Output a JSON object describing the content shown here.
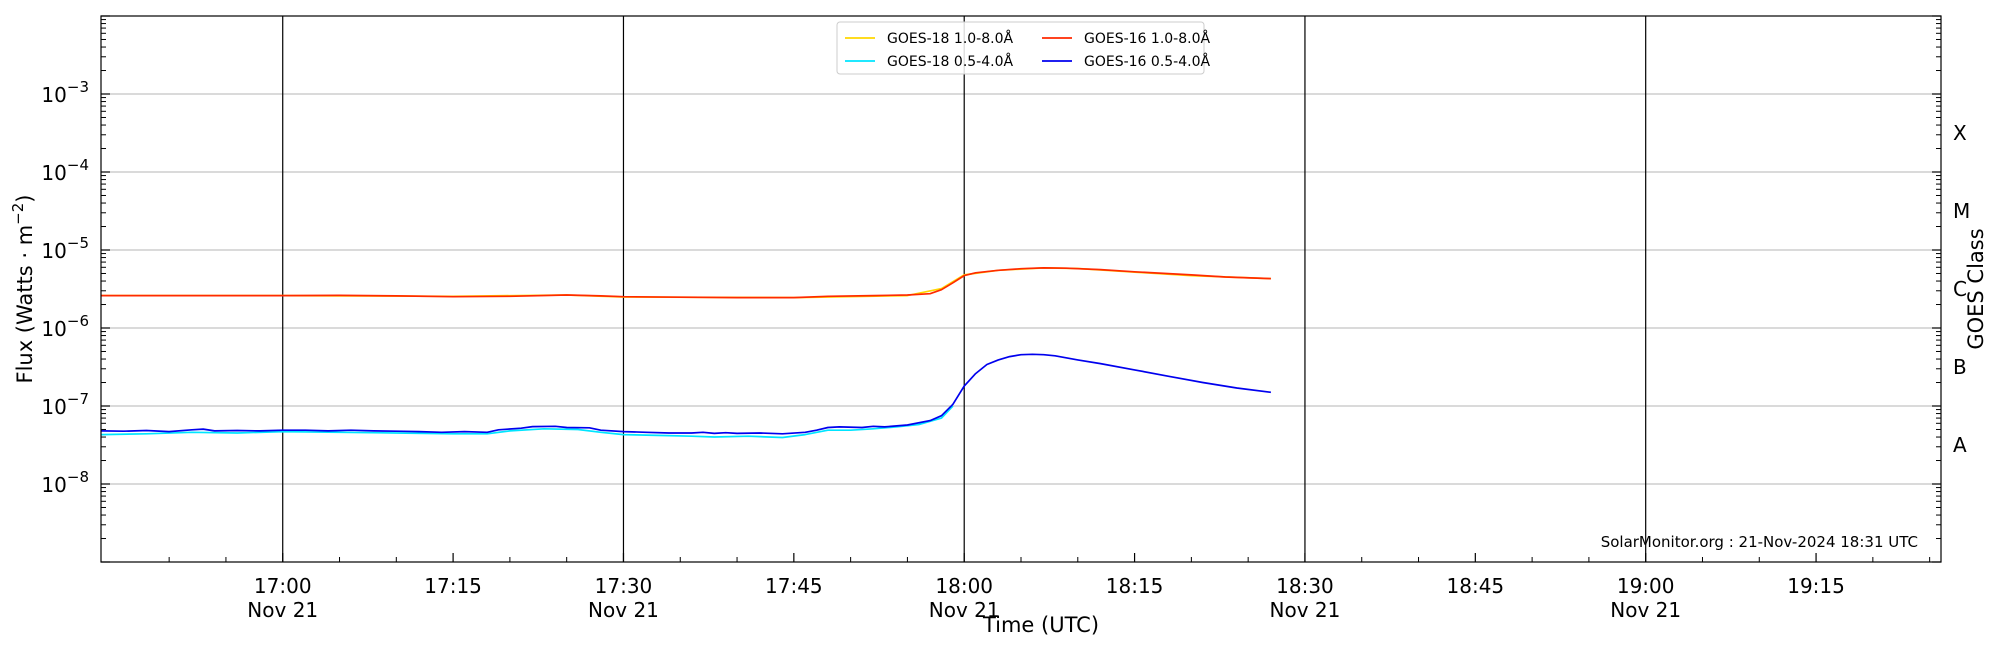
{
  "chart_data": {
    "type": "line",
    "x_axis": {
      "label": "Time (UTC)",
      "range": [
        "16:44",
        "19:26"
      ],
      "ticks": [
        {
          "time": "17:00",
          "label": "17:00",
          "sub": "Nov 21"
        },
        {
          "time": "17:15",
          "label": "17:15",
          "sub": ""
        },
        {
          "time": "17:30",
          "label": "17:30",
          "sub": "Nov 21"
        },
        {
          "time": "17:45",
          "label": "17:45",
          "sub": ""
        },
        {
          "time": "18:00",
          "label": "18:00",
          "sub": "Nov 21"
        },
        {
          "time": "18:15",
          "label": "18:15",
          "sub": ""
        },
        {
          "time": "18:30",
          "label": "18:30",
          "sub": "Nov 21"
        },
        {
          "time": "18:45",
          "label": "18:45",
          "sub": ""
        },
        {
          "time": "19:00",
          "label": "19:00",
          "sub": "Nov 21"
        },
        {
          "time": "19:15",
          "label": "19:15",
          "sub": ""
        }
      ],
      "vertical_lines": [
        "17:00",
        "17:30",
        "18:00",
        "18:30",
        "19:00"
      ]
    },
    "y_axis": {
      "label_prefix": "Flux (Watts · m",
      "label_sup": "−2",
      "label_suffix": ")",
      "scale": "log",
      "range": [
        1e-09,
        0.01
      ],
      "ticks": [
        {
          "exp": -8,
          "base": "10",
          "sup": "−8"
        },
        {
          "exp": -7,
          "base": "10",
          "sup": "−7"
        },
        {
          "exp": -6,
          "base": "10",
          "sup": "−6"
        },
        {
          "exp": -5,
          "base": "10",
          "sup": "−5"
        },
        {
          "exp": -4,
          "base": "10",
          "sup": "−4"
        },
        {
          "exp": -3,
          "base": "10",
          "sup": "−3"
        }
      ],
      "grid": true
    },
    "right_axis": {
      "label": "GOES Class",
      "classes": [
        {
          "label": "A",
          "exp": -7.5
        },
        {
          "label": "B",
          "exp": -6.5
        },
        {
          "label": "C",
          "exp": -5.5
        },
        {
          "label": "M",
          "exp": -4.5
        },
        {
          "label": "X",
          "exp": -3.5
        }
      ]
    },
    "legend": {
      "position": "top-center",
      "entries": [
        {
          "name": "GOES-18 1.0-8.0Å",
          "color": "#ffd700"
        },
        {
          "name": "GOES-18 0.5-4.0Å",
          "color": "#00e5ff"
        },
        {
          "name": "GOES-16 1.0-8.0Å",
          "color": "#ff2a00"
        },
        {
          "name": "GOES-16 0.5-4.0Å",
          "color": "#0000ee"
        }
      ]
    },
    "series": [
      {
        "name": "GOES-18 1.0-8.0Å",
        "color": "#ffd700",
        "points": [
          [
            "16:44",
            2.6e-06
          ],
          [
            "17:00",
            2.6e-06
          ],
          [
            "17:15",
            2.55e-06
          ],
          [
            "17:25",
            2.65e-06
          ],
          [
            "17:30",
            2.5e-06
          ],
          [
            "17:45",
            2.45e-06
          ],
          [
            "17:55",
            2.6e-06
          ],
          [
            "17:58",
            3.2e-06
          ],
          [
            "18:00",
            4.8e-06
          ],
          [
            "18:03",
            5.5e-06
          ],
          [
            "18:07",
            5.9e-06
          ],
          [
            "18:10",
            5.8e-06
          ],
          [
            "18:15",
            5.2e-06
          ],
          [
            "18:20",
            4.7e-06
          ],
          [
            "18:27",
            4.3e-06
          ]
        ]
      },
      {
        "name": "GOES-16 1.0-8.0Å",
        "color": "#ff2a00",
        "points": [
          [
            "16:44",
            2.6e-06
          ],
          [
            "16:50",
            2.6e-06
          ],
          [
            "17:00",
            2.6e-06
          ],
          [
            "17:05",
            2.62e-06
          ],
          [
            "17:10",
            2.58e-06
          ],
          [
            "17:15",
            2.52e-06
          ],
          [
            "17:20",
            2.55e-06
          ],
          [
            "17:25",
            2.65e-06
          ],
          [
            "17:28",
            2.58e-06
          ],
          [
            "17:30",
            2.52e-06
          ],
          [
            "17:35",
            2.48e-06
          ],
          [
            "17:40",
            2.45e-06
          ],
          [
            "17:45",
            2.45e-06
          ],
          [
            "17:48",
            2.55e-06
          ],
          [
            "17:52",
            2.6e-06
          ],
          [
            "17:55",
            2.65e-06
          ],
          [
            "17:57",
            2.75e-06
          ],
          [
            "17:58",
            3.1e-06
          ],
          [
            "17:59",
            3.8e-06
          ],
          [
            "18:00",
            4.7e-06
          ],
          [
            "18:01",
            5.1e-06
          ],
          [
            "18:03",
            5.5e-06
          ],
          [
            "18:05",
            5.75e-06
          ],
          [
            "18:07",
            5.9e-06
          ],
          [
            "18:09",
            5.85e-06
          ],
          [
            "18:12",
            5.6e-06
          ],
          [
            "18:15",
            5.25e-06
          ],
          [
            "18:20",
            4.8e-06
          ],
          [
            "18:23",
            4.5e-06
          ],
          [
            "18:27",
            4.3e-06
          ]
        ]
      },
      {
        "name": "GOES-18 0.5-4.0Å",
        "color": "#00e5ff",
        "points": [
          [
            "16:44",
            4.3e-08
          ],
          [
            "16:48",
            4.4e-08
          ],
          [
            "16:52",
            4.6e-08
          ],
          [
            "16:56",
            4.5e-08
          ],
          [
            "17:00",
            4.7e-08
          ],
          [
            "17:05",
            4.6e-08
          ],
          [
            "17:10",
            4.5e-08
          ],
          [
            "17:15",
            4.4e-08
          ],
          [
            "17:18",
            4.4e-08
          ],
          [
            "17:20",
            4.8e-08
          ],
          [
            "17:23",
            5.1e-08
          ],
          [
            "17:26",
            5e-08
          ],
          [
            "17:28",
            4.6e-08
          ],
          [
            "17:30",
            4.3e-08
          ],
          [
            "17:33",
            4.2e-08
          ],
          [
            "17:36",
            4.1e-08
          ],
          [
            "17:38",
            4e-08
          ],
          [
            "17:41",
            4.1e-08
          ],
          [
            "17:44",
            3.95e-08
          ],
          [
            "17:46",
            4.3e-08
          ],
          [
            "17:48",
            4.9e-08
          ],
          [
            "17:50",
            4.9e-08
          ],
          [
            "17:52",
            5.1e-08
          ],
          [
            "17:54",
            5.4e-08
          ],
          [
            "17:56",
            5.8e-08
          ],
          [
            "17:58",
            7e-08
          ],
          [
            "17:59",
            1e-07
          ]
        ]
      },
      {
        "name": "GOES-16 0.5-4.0Å",
        "color": "#0000ee",
        "points": [
          [
            "16:44",
            4.8e-08
          ],
          [
            "16:46",
            4.75e-08
          ],
          [
            "16:48",
            4.85e-08
          ],
          [
            "16:50",
            4.7e-08
          ],
          [
            "16:52",
            4.95e-08
          ],
          [
            "16:53",
            5.05e-08
          ],
          [
            "16:54",
            4.8e-08
          ],
          [
            "16:56",
            4.85e-08
          ],
          [
            "16:58",
            4.8e-08
          ],
          [
            "17:00",
            4.9e-08
          ],
          [
            "17:02",
            4.9e-08
          ],
          [
            "17:04",
            4.8e-08
          ],
          [
            "17:06",
            4.9e-08
          ],
          [
            "17:08",
            4.8e-08
          ],
          [
            "17:10",
            4.75e-08
          ],
          [
            "17:12",
            4.7e-08
          ],
          [
            "17:14",
            4.6e-08
          ],
          [
            "17:16",
            4.7e-08
          ],
          [
            "17:18",
            4.6e-08
          ],
          [
            "17:19",
            4.95e-08
          ],
          [
            "17:21",
            5.2e-08
          ],
          [
            "17:22",
            5.45e-08
          ],
          [
            "17:24",
            5.5e-08
          ],
          [
            "17:25",
            5.3e-08
          ],
          [
            "17:27",
            5.25e-08
          ],
          [
            "17:28",
            4.9e-08
          ],
          [
            "17:30",
            4.7e-08
          ],
          [
            "17:32",
            4.6e-08
          ],
          [
            "17:34",
            4.5e-08
          ],
          [
            "17:36",
            4.5e-08
          ],
          [
            "17:37",
            4.6e-08
          ],
          [
            "17:38",
            4.45e-08
          ],
          [
            "17:39",
            4.55e-08
          ],
          [
            "17:40",
            4.45e-08
          ],
          [
            "17:42",
            4.5e-08
          ],
          [
            "17:44",
            4.4e-08
          ],
          [
            "17:46",
            4.6e-08
          ],
          [
            "17:47",
            4.9e-08
          ],
          [
            "17:48",
            5.3e-08
          ],
          [
            "17:49",
            5.4e-08
          ],
          [
            "17:51",
            5.3e-08
          ],
          [
            "17:52",
            5.5e-08
          ],
          [
            "17:53",
            5.4e-08
          ],
          [
            "17:55",
            5.7e-08
          ],
          [
            "17:57",
            6.5e-08
          ],
          [
            "17:58",
            7.5e-08
          ],
          [
            "17:59",
            1.05e-07
          ],
          [
            "18:00",
            1.8e-07
          ],
          [
            "18:01",
            2.6e-07
          ],
          [
            "18:02",
            3.4e-07
          ],
          [
            "18:03",
            3.9e-07
          ],
          [
            "18:04",
            4.3e-07
          ],
          [
            "18:05",
            4.55e-07
          ],
          [
            "18:06",
            4.6e-07
          ],
          [
            "18:07",
            4.55e-07
          ],
          [
            "18:08",
            4.4e-07
          ],
          [
            "18:10",
            3.9e-07
          ],
          [
            "18:12",
            3.5e-07
          ],
          [
            "18:15",
            2.9e-07
          ],
          [
            "18:18",
            2.4e-07
          ],
          [
            "18:21",
            2e-07
          ],
          [
            "18:24",
            1.7e-07
          ],
          [
            "18:27",
            1.5e-07
          ]
        ]
      }
    ],
    "credit": "SolarMonitor.org : 21-Nov-2024 18:31 UTC"
  }
}
